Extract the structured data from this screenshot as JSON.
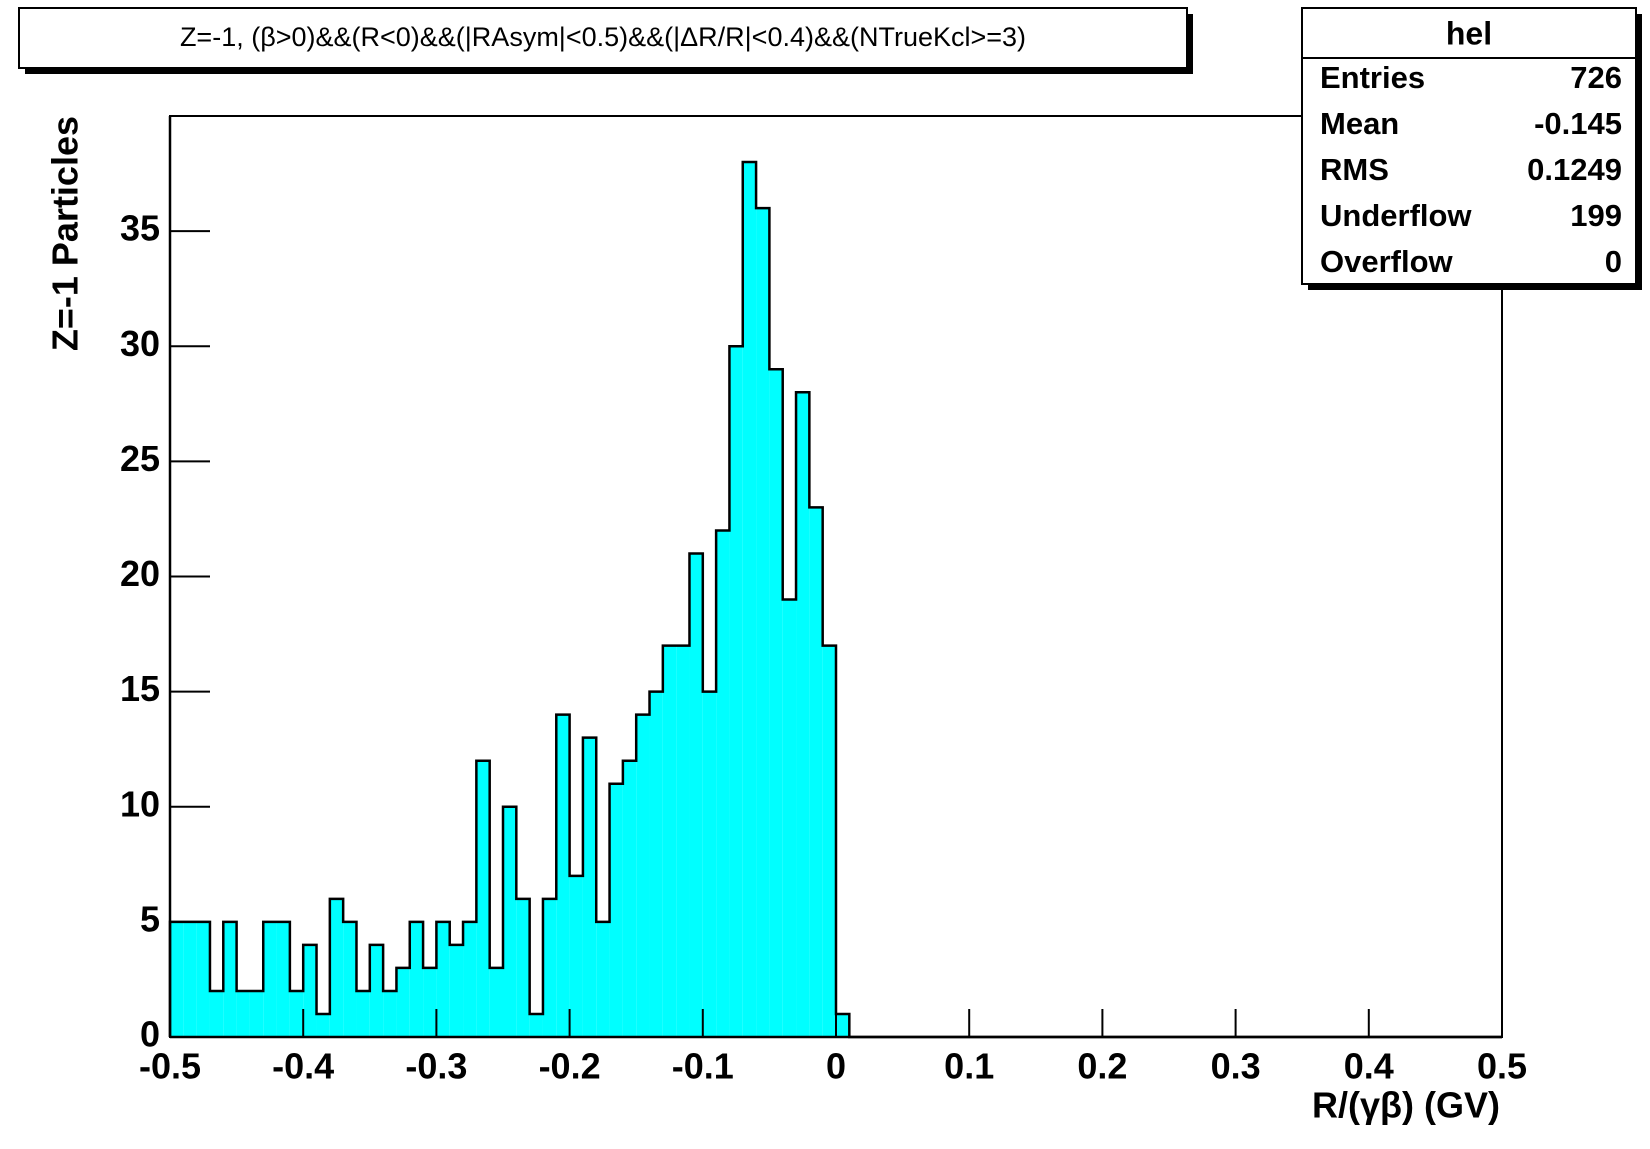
{
  "chart_data": {
    "type": "histogram",
    "title": "Z=-1, (β>0)&&(R<0)&&(|RAsym|<0.5)&&(|ΔR/R|<0.4)&&(NTrueKcl>=3)",
    "x_label": "R/(γβ) (GV)",
    "y_label": "Z=-1 Particles",
    "color": "#00ffff",
    "bins": [
      -0.5,
      -0.49,
      -0.48,
      -0.47,
      -0.46,
      -0.45,
      -0.44,
      -0.43,
      -0.42,
      -0.41,
      -0.4,
      -0.39,
      -0.38,
      -0.37,
      -0.36,
      -0.35,
      -0.34,
      -0.33,
      -0.32,
      -0.31,
      -0.3,
      -0.29,
      -0.28,
      -0.27,
      -0.26,
      -0.25,
      -0.24,
      -0.23,
      -0.22,
      -0.21,
      -0.2,
      -0.19,
      -0.18,
      -0.17,
      -0.16,
      -0.15,
      -0.14,
      -0.13,
      -0.12,
      -0.11,
      -0.1,
      -0.09,
      -0.08,
      -0.07,
      -0.06,
      -0.05,
      -0.04,
      -0.03,
      -0.02,
      -0.01,
      0,
      0.01,
      0.02,
      0.03,
      0.04,
      0.05,
      0.06,
      0.07,
      0.08,
      0.09,
      0.1,
      0.11,
      0.12,
      0.13,
      0.14,
      0.15,
      0.16,
      0.17,
      0.18,
      0.19,
      0.2,
      0.21,
      0.22,
      0.23,
      0.24,
      0.25,
      0.26,
      0.27,
      0.28,
      0.29,
      0.3,
      0.31,
      0.32,
      0.33,
      0.34,
      0.35,
      0.36,
      0.37,
      0.38,
      0.39,
      0.4,
      0.41,
      0.42,
      0.43,
      0.44,
      0.45,
      0.46,
      0.47,
      0.48,
      0.49,
      0.5
    ],
    "values": [
      5,
      5,
      5,
      2,
      5,
      2,
      2,
      5,
      5,
      2,
      4,
      1,
      6,
      5,
      2,
      4,
      2,
      3,
      5,
      3,
      5,
      4,
      5,
      12,
      3,
      10,
      6,
      1,
      6,
      14,
      7,
      13,
      5,
      11,
      12,
      14,
      15,
      17,
      17,
      21,
      15,
      22,
      30,
      38,
      36,
      29,
      19,
      28,
      23,
      17,
      1,
      0,
      0,
      0,
      0,
      0,
      0,
      0,
      0,
      0,
      0,
      0,
      0,
      0,
      0,
      0,
      0,
      0,
      0,
      0,
      0,
      0,
      0,
      0,
      0,
      0,
      0,
      0,
      0,
      0,
      0,
      0,
      0,
      0,
      0,
      0,
      0,
      0,
      0,
      0,
      0,
      0,
      0,
      0,
      0,
      0,
      0,
      0,
      0,
      0
    ],
    "xlim": [
      -0.5,
      0.5
    ],
    "xticks": [
      -0.5,
      -0.4,
      -0.3,
      -0.2,
      -0.1,
      0,
      0.1,
      0.2,
      0.3,
      0.4,
      0.5
    ],
    "ylim": [
      0,
      40
    ],
    "yticks": [
      0,
      5,
      10,
      15,
      20,
      25,
      30,
      35
    ],
    "stats": {
      "title": "hel",
      "rows": [
        {
          "label": "Entries",
          "value": 726
        },
        {
          "label": "Mean",
          "value": -0.145
        },
        {
          "label": "RMS",
          "value": 0.1249
        },
        {
          "label": "Underflow",
          "value": 199
        },
        {
          "label": "Overflow",
          "value": 0
        }
      ]
    }
  }
}
